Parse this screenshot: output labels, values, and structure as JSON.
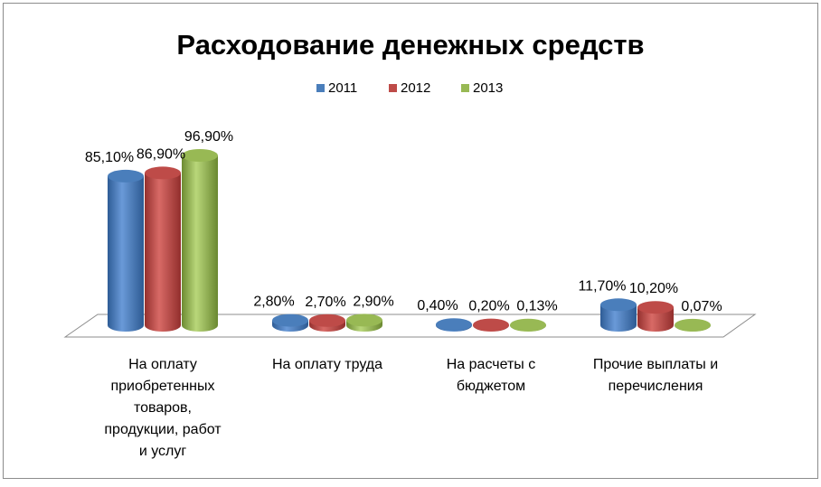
{
  "chart_data": {
    "type": "bar",
    "style": "3d-cylinder",
    "title": "Расходование денежных средств",
    "legend_position": "top",
    "categories": [
      [
        "На оплату",
        "приобретенных",
        "товаров,",
        "продукции, работ",
        "и услуг"
      ],
      [
        "На оплату труда"
      ],
      [
        "На расчеты с",
        "бюджетом"
      ],
      [
        "Прочие выплаты и",
        "перечисления"
      ]
    ],
    "series": [
      {
        "name": "2011",
        "color": "#4a7ebb",
        "values": [
          85.1,
          2.8,
          0.4,
          11.7
        ],
        "labels": [
          "85,10%",
          "2,80%",
          "0,40%",
          "11,70%"
        ]
      },
      {
        "name": "2012",
        "color": "#be4b48",
        "values": [
          86.9,
          2.7,
          0.2,
          10.2
        ],
        "labels": [
          "86,90%",
          "2,70%",
          "0,20%",
          "10,20%"
        ]
      },
      {
        "name": "2013",
        "color": "#98b954",
        "values": [
          96.9,
          2.9,
          0.13,
          0.07
        ],
        "labels": [
          "96,90%",
          "2,90%",
          "0,13%",
          "0,07%"
        ]
      }
    ],
    "unit": "%",
    "grid": false
  }
}
